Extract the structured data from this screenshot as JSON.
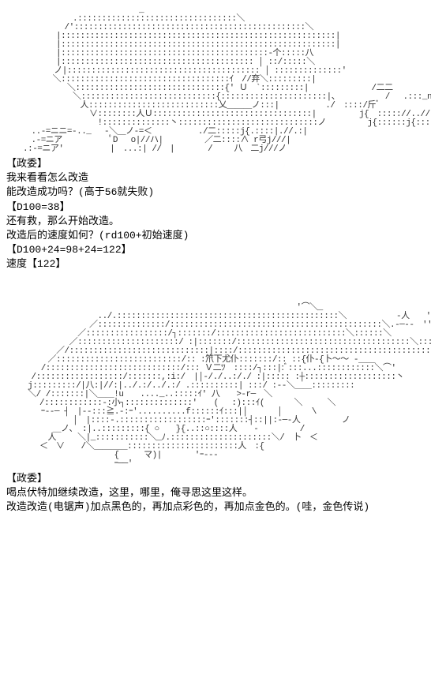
{
  "section1": {
    "ascii_art": "　　　　　　　　　　　　　　　　_\n　　　　　　　　.:::::::::::::::::::::::::::::::::＼\n　　　　　　　/'::::::::::::::::::::::::::::::::::::::::::::::::＼\n　　　　　　|:::::::::::::::::::::::::::::::::::::::::::::::::::::::::|\n　　　　　　|:::::::::::::::::::::::::::::::::::::::::::::::::::::::::|\n　　　　　　|:::::::::::::::::::::::::::::::::::::::::::-个:::::八\n　　　　　　|:::::::::::::::::::::::::::::::::::::::: │ ::/:::::＼\n　　 　 　 ノ|:::::::::::::::::::::::::::::::::::::::: │ ::::::::::::::′\n　　　　　 ＼:::::::::::::::::::::::::::::::::::ｲ　//弃＼:::::::::|\n　　 　 　 　 ＼:::::::::::::::::::::::::::::::{' Ｕ　`:::::::::|　　　　　　　 /二二\n　　　　　　　　＼::::::::::::::::::::::::::::{::::::::::::::::::::::|、　　　　　　/　 .:::_n\n　　 　 　 　 　 人:::::::::::::::::::::::::::乂＿＿＿ノ:::|　　　　　 ./　::::/斤ﾞ\n　　　　　　　　　　∨::::::::人Ｕ:::::::::::::::::::::::::::::::::|　　 　　 j{　::::://..//|\n　　　　　　　　　　　!::::::::::::::丶:::::::::::::::::::::::::::::ノ　　　　　j{::::::j{::::|//./|\n　　　..-=ニニ=-.._　 -＼＿ノ-=＜　　　　　 ./二:::::j{.::::|.//.:|\n　　　.-=ニア　　　　 　ﾟD　 o|//ハ|　　　　　／二::::∧ r弓j///|\n　　.:-=ニア′　　　　　 |　...:| //　|　　　　/　　 八　二j///ノ",
    "speaker_tag": "【政委】",
    "line1": "我来看看怎么改造",
    "line2": "能改造成功吗？(高于56就失败)",
    "dice1": "【D100=38】",
    "line3": "还有救，那么开始改造。",
    "line4": "改造后的速度如何？(rd100+初始速度)",
    "dice2": "【D100+24=98+24=122】",
    "result": "速度【122】"
  },
  "section2": {
    "ascii_art": "　　　　　　　　　　　　　　　　　　　　　　　　　　　　　　　　　　　'⌒＼_\n　　　　　　　　　　　../.::::::::::::::::::::::::::::::::::::::::::::::＼　　　　　　-人　　′\n　　　　　　　　　　／::::::::::::::/::::::::::::::::::::::::::::::::::::::::::::＼.-─--　''　ヽ/\n　　　　　　　　 ／:::::::::::::::::/┐:::::::/:::::::::::::::::::::::::::＼::::::＼　　　　　　　＼\n　　　　　　　 ／:::::::::::::::::::::/ :|:::::::/::::::::::::::::::::::::::::::::::::＼:::::＼ 　 　 　 　 ＼\n　　　　　　／/:::::::::::::::::::::::::::::|::::/:::::::::::::::::::::::::::::::::::::::::::::＼:::::＼\n　　　　　／::::::::::::::::::::::::::/:: :笊下尤仆:::::::/:: ::{仆-{卜〜〜 -＿＿\n　　 　 /::::::::::::::::::::::::::::/::: Ｖ二ﾂ　::::/┐:::|:ﾞ:::...::::::::::::＼⌒'\n　　　/::::::::::::::::::/:::::::,:i:/　|│-/./..:/./ :|::::: :┼:::::::::::::::::::丶\n　　 j:::::::::/|八:|//:|../.:/../.:/ .::::::::::| :::/ :--＼＿＿:::::::::\n　　 ＼/ /:::::::|＼＿＿!u　　...._..:::::ｲ′ 八　　>-r─　＼\n　　　　/::::::::::::-:小┐::::::::::::::′　　(　 :):::ｲ(　　　 ＼　　　＼\n　　 　 ｰ--─ ┤　|--:::≧.-:ｰ'..........f::::::ｲ:::|│　　　 │　　　 \\\n　　　　　　　　│　|::::-.::::::::::::::::::ｰ':::::::┤::||:-─-人　　　　　ノ\n　　　　　 ＿ノ、 :|..:::::::::{ ○　　}{..::○::::人　　-　　　　　/\n　　　　　人　　 ＼|_:::::::::::＼_ﾉ.:::::::::::::::::::::＼/　卜　＜\n　　　　＜　∨　　/＼＿＿＿＿:::::::::::::::::::::::人　:{\n　　　　　　　　　　　　　{　　　マ)|　　　　'ｰ--‐\n　　　　　　　　　　　　　ｰ──'",
    "speaker_tag": "【政委】",
    "line1": "喝点伏特加继续改造，这里，哪里，俺寻思这里这样。",
    "line2": "改造改造(电锯声)加点黑色的，再加点彩色的，再加点金色的。(哇，金色传说)"
  }
}
